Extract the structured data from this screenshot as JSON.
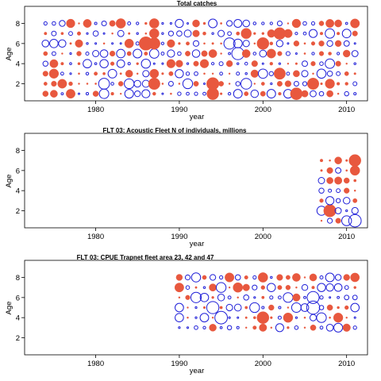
{
  "chart_data": [
    {
      "type": "scatter",
      "title": "Total catches",
      "xlabel": "year",
      "ylabel": "Age",
      "xlim": [
        1971.5,
        2012.5
      ],
      "ylim": [
        0.3,
        9.7
      ],
      "xticks": [
        1980,
        1990,
        2000,
        2010
      ],
      "yticks": [
        2,
        4,
        6,
        8
      ],
      "years": [
        1974,
        2011
      ],
      "ages": [
        1,
        8
      ],
      "encoding": "bubble size = magnitude of residual; red filled = positive, blue open = negative"
    },
    {
      "type": "scatter",
      "title": "FLT 03: Acoustic Fleet  N of individuals, millions",
      "xlabel": "year",
      "ylabel": "Age",
      "xlim": [
        1971.5,
        2012.5
      ],
      "ylim": [
        0.3,
        9.7
      ],
      "xticks": [
        1980,
        1990,
        2000,
        2010
      ],
      "yticks": [
        2,
        4,
        6,
        8
      ],
      "years": [
        2007,
        2011
      ],
      "ages": [
        1,
        7
      ],
      "encoding": "bubble size = magnitude of residual; red filled = positive, blue open = negative"
    },
    {
      "type": "scatter",
      "title": "FLT 03: CPUE Trapnet fleet area 23, 42 and 47",
      "xlabel": "year",
      "ylabel": "Age",
      "xlim": [
        1971.5,
        2012.5
      ],
      "ylim": [
        0.3,
        9.7
      ],
      "xticks": [
        1980,
        1990,
        2000,
        2010
      ],
      "yticks": [
        2,
        4,
        6,
        8
      ],
      "years": [
        1990,
        2011
      ],
      "ages": [
        3,
        8
      ],
      "encoding": "bubble size = magnitude of residual; red filled = positive, blue open = negative"
    }
  ],
  "colors": {
    "positive": "#e8583e",
    "negative": "#1f1fd8",
    "axis": "#000000"
  }
}
